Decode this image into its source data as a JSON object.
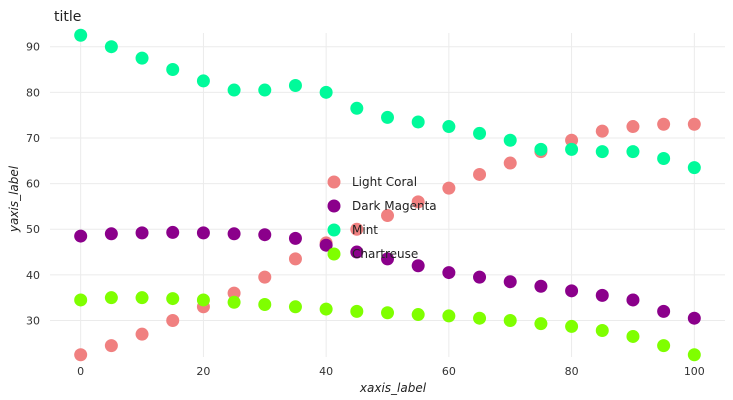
{
  "chart_data": {
    "type": "line",
    "title": "title",
    "xlabel": "xaxis_label",
    "ylabel": "yaxis_label",
    "xlim": [
      -5,
      105
    ],
    "ylim": [
      22,
      93
    ],
    "x_ticks": [
      0,
      20,
      40,
      60,
      80,
      100
    ],
    "y_ticks": [
      30,
      40,
      50,
      60,
      70,
      80,
      90
    ],
    "grid": true,
    "legend_position": "center-right",
    "x": [
      0,
      5,
      10,
      15,
      20,
      25,
      30,
      35,
      40,
      45,
      50,
      55,
      60,
      65,
      70,
      75,
      80,
      85,
      90,
      95,
      100
    ],
    "series": [
      {
        "name": "Light Coral",
        "color": "#f08080",
        "values": [
          22.5,
          24.5,
          27.0,
          30.0,
          33.0,
          36.0,
          39.5,
          43.5,
          47.0,
          50.0,
          53.0,
          56.0,
          59.0,
          62.0,
          64.5,
          67.0,
          69.5,
          71.5,
          72.5,
          73.0,
          73.0
        ]
      },
      {
        "name": "Dark Magenta",
        "color": "#8b008b",
        "values": [
          48.5,
          49.0,
          49.2,
          49.3,
          49.2,
          49.0,
          48.8,
          48.0,
          46.5,
          45.0,
          43.5,
          42.0,
          40.5,
          39.5,
          38.5,
          37.5,
          36.5,
          35.5,
          34.5,
          32.0,
          30.5
        ]
      },
      {
        "name": "Mint",
        "color": "#00fa9a",
        "values": [
          92.5,
          90.0,
          87.5,
          85.0,
          82.5,
          80.5,
          80.5,
          81.5,
          80.0,
          76.5,
          74.5,
          73.5,
          72.5,
          71.0,
          69.5,
          67.5,
          67.5,
          67.0,
          67.0,
          65.5,
          63.5
        ]
      },
      {
        "name": "Chartreuse",
        "color": "#7fff00",
        "values": [
          34.5,
          35.0,
          35.0,
          34.8,
          34.5,
          34.0,
          33.5,
          33.0,
          32.5,
          32.0,
          31.7,
          31.3,
          31.0,
          30.5,
          30.0,
          29.3,
          28.7,
          27.8,
          26.5,
          24.5,
          22.5
        ]
      }
    ],
    "legend_order": [
      "Light Coral",
      "Dark Magenta",
      "Mint",
      "Chartreuse"
    ]
  }
}
